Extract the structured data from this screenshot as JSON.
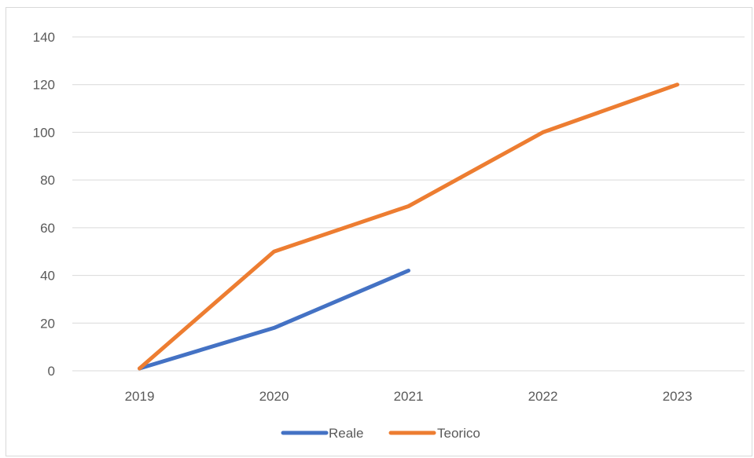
{
  "chart_data": {
    "type": "line",
    "title": "",
    "xlabel": "",
    "ylabel": "",
    "categories": [
      "2019",
      "2020",
      "2021",
      "2022",
      "2023"
    ],
    "ylim": [
      0,
      140
    ],
    "yticks": [
      0,
      20,
      40,
      60,
      80,
      100,
      120,
      140
    ],
    "grid": true,
    "legend_position": "bottom",
    "series": [
      {
        "name": "Reale",
        "color": "#4472C4",
        "values": [
          1,
          18,
          42,
          null,
          null
        ]
      },
      {
        "name": "Teorico",
        "color": "#ED7D31",
        "values": [
          1,
          50,
          69,
          100,
          120
        ]
      }
    ]
  }
}
